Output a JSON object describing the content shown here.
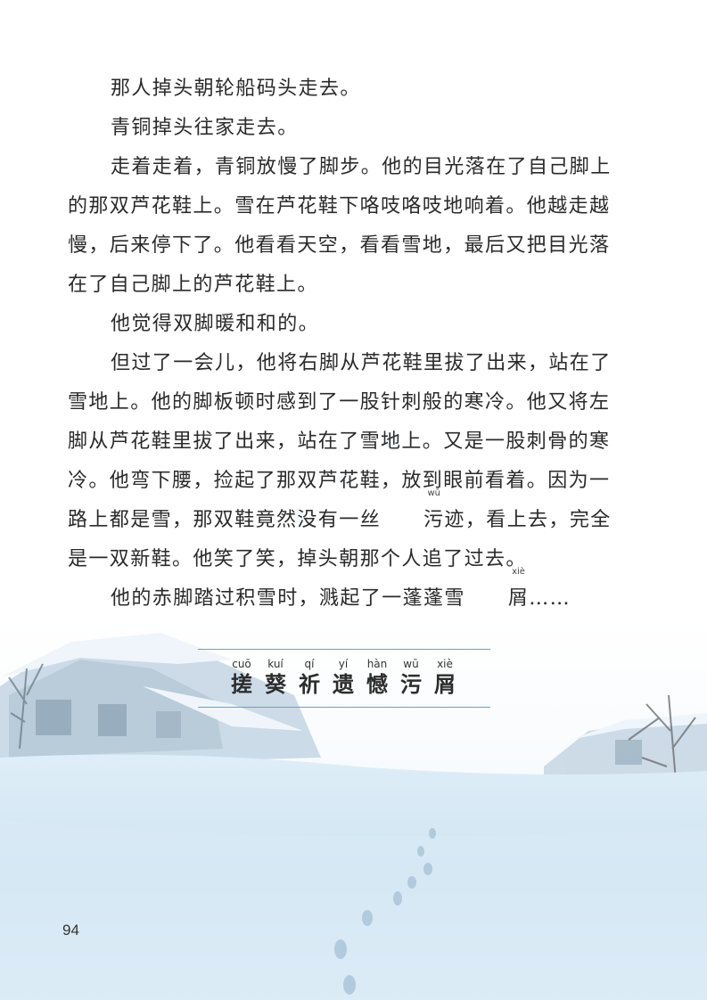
{
  "paragraphs": [
    "那人掉头朝轮船码头走去。",
    "青铜掉头往家走去。",
    "走着走着，青铜放慢了脚步。他的目光落在了自己脚上的那双芦花鞋上。雪在芦花鞋下咯吱咯吱地响着。他越走越慢，后来停下了。他看看天空，看看雪地，最后又把目光落在了自己脚上的芦花鞋上。",
    "他觉得双脚暖和和的。",
    {
      "before": "但过了一会儿，他将右脚从芦花鞋里拔了出来，站在了雪地上。他的脚板顿时感到了一股针刺般的寒冷。他又将左脚从芦花鞋里拔了出来，站在了雪地上。又是一股刺骨的寒冷。他弯下腰，捡起了那双芦花鞋，放到眼前看着。因为一路上都是雪，那双鞋竟然没有一丝",
      "ruby_char": "污",
      "ruby_pinyin": "wū",
      "after": "迹，看上去，完全是一双新鞋。他笑了笑，掉头朝那个人追了过去。"
    },
    {
      "before": "他的赤脚踏过积雪时，溅起了一蓬蓬雪",
      "ruby_char": "屑",
      "ruby_pinyin": "xiè",
      "after": "……"
    }
  ],
  "vocabulary": [
    {
      "pinyin": "cuō",
      "char": "搓"
    },
    {
      "pinyin": "kuí",
      "char": "葵"
    },
    {
      "pinyin": "qí",
      "char": "祈"
    },
    {
      "pinyin": "yí",
      "char": "遗"
    },
    {
      "pinyin": "hàn",
      "char": "憾"
    },
    {
      "pinyin": "wū",
      "char": "污"
    },
    {
      "pinyin": "xiè",
      "char": "屑"
    }
  ],
  "page_number": "94",
  "colors": {
    "snow": "#e6f1f9",
    "vocab_line": "#5aa7cf",
    "text": "#2a2a2a"
  }
}
